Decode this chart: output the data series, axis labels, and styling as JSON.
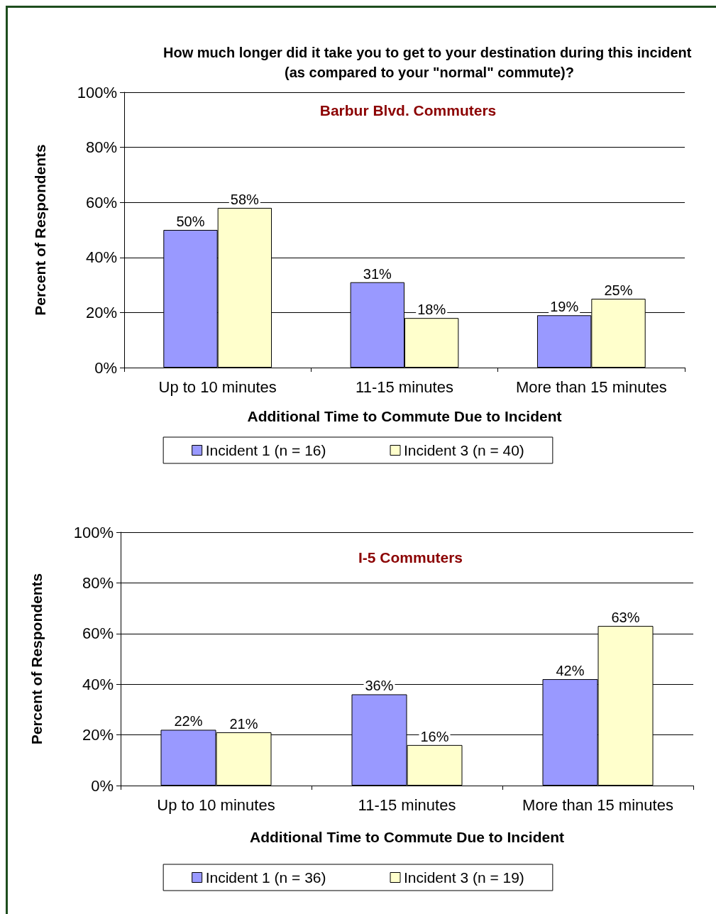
{
  "chart_data": [
    {
      "type": "bar",
      "title": "How much longer did it take you to get to your destination during this incident (as compared to your \"normal\" commute)?",
      "subtitle": "Barbur Blvd. Commuters",
      "xlabel": "Additional Time to Commute Due to Incident",
      "ylabel": "Percent of Respondents",
      "categories": [
        "Up to 10 minutes",
        "11-15 minutes",
        "More than 15 minutes"
      ],
      "series": [
        {
          "name": "Incident 1 (n = 16)",
          "color": "#9999ff",
          "values": [
            50,
            31,
            19
          ],
          "value_labels": [
            "50%",
            "31%",
            "19%"
          ]
        },
        {
          "name": "Incident 3 (n = 40)",
          "color": "#ffffcc",
          "values": [
            58,
            18,
            25
          ],
          "value_labels": [
            "58%",
            "18%",
            "25%"
          ]
        }
      ],
      "ylim": [
        0,
        100
      ],
      "yticks": [
        {
          "value": 0,
          "label": "0%"
        },
        {
          "value": 20,
          "label": "20%"
        },
        {
          "value": 40,
          "label": "40%"
        },
        {
          "value": 60,
          "label": "60%"
        },
        {
          "value": 80,
          "label": "80%"
        },
        {
          "value": 100,
          "label": "100%"
        }
      ],
      "grid": "y",
      "legend": "bottom"
    },
    {
      "type": "bar",
      "title": "I-5 Commuters",
      "xlabel": "Additional Time to Commute Due to Incident",
      "ylabel": "Percent of Respondents",
      "categories": [
        "Up to 10 minutes",
        "11-15 minutes",
        "More than 15 minutes"
      ],
      "series": [
        {
          "name": "Incident 1 (n = 36)",
          "color": "#9999ff",
          "values": [
            22,
            36,
            42
          ],
          "value_labels": [
            "22%",
            "36%",
            "42%"
          ]
        },
        {
          "name": "Incident 3 (n = 19)",
          "color": "#ffffcc",
          "values": [
            21,
            16,
            63
          ],
          "value_labels": [
            "21%",
            "16%",
            "63%"
          ]
        }
      ],
      "ylim": [
        0,
        100
      ],
      "yticks": [
        {
          "value": 0,
          "label": "0%"
        },
        {
          "value": 20,
          "label": "20%"
        },
        {
          "value": 40,
          "label": "40%"
        },
        {
          "value": 60,
          "label": "60%"
        },
        {
          "value": 80,
          "label": "80%"
        },
        {
          "value": 100,
          "label": "100%"
        }
      ],
      "grid": "y",
      "legend": "bottom"
    }
  ]
}
